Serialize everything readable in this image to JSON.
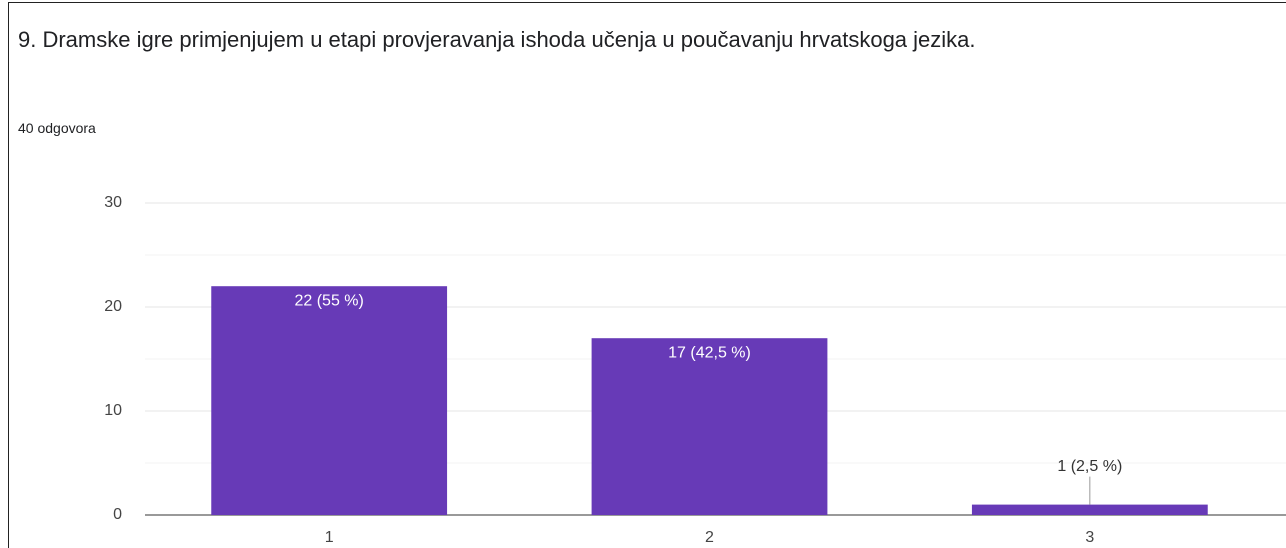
{
  "chart_data": {
    "type": "bar",
    "title": "9. Dramske igre primjenjujem u etapi provjeravanja ishoda učenja u poučavanju hrvatskoga jezika.",
    "subtitle": "40 odgovora",
    "categories": [
      "1",
      "2",
      "3"
    ],
    "values": [
      22,
      17,
      1
    ],
    "value_labels": [
      "22 (55 %)",
      "17 (42,5 %)",
      "1 (2,5 %)"
    ],
    "color": "#673ab7",
    "ylim": [
      0,
      30
    ],
    "yticks": [
      0,
      10,
      20,
      30
    ],
    "minor_yticks": [
      5,
      15,
      25
    ],
    "grid": true
  }
}
